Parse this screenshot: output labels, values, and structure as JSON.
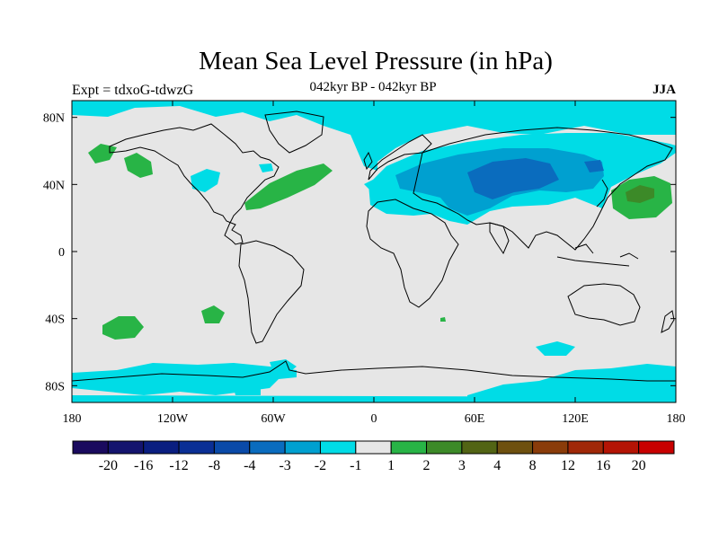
{
  "header": {
    "title": "Mean Sea Level Pressure (in hPa)",
    "subtitle": "042kyr BP - 042kyr BP",
    "experiment": "Expt = tdxoG-tdwzG",
    "season": "JJA"
  },
  "map": {
    "projection": "cylindrical-equidistant",
    "lon_range": [
      -180,
      180
    ],
    "lat_range": [
      -90,
      90
    ],
    "background_color": "#e6e6e6",
    "coastline_color": "#000000",
    "x_ticks": [
      "180",
      "120W",
      "60W",
      "0",
      "60E",
      "120E",
      "180"
    ],
    "y_ticks": [
      "80N",
      "40N",
      "0",
      "40S",
      "80S"
    ]
  },
  "colorbar": {
    "colors": [
      "#1a0a5e",
      "#14146e",
      "#0a1e80",
      "#0a2f95",
      "#0a4aa8",
      "#0a6cbe",
      "#00a0d0",
      "#00dce6",
      "#e6e6e6",
      "#28b446",
      "#3c8a28",
      "#526414",
      "#6e500f",
      "#8a3c0a",
      "#a02808",
      "#b41405",
      "#c80000"
    ],
    "labels": [
      "-20",
      "-16",
      "-12",
      "-8",
      "-4",
      "-3",
      "-2",
      "-1",
      "1",
      "2",
      "3",
      "4",
      "8",
      "12",
      "16",
      "20"
    ]
  },
  "anomaly_regions": [
    {
      "name": "eurasia-low-cyan",
      "level": "-1",
      "color": "#00dce6"
    },
    {
      "name": "eurasia-low-blue",
      "level": "-2",
      "color": "#00a0d0"
    },
    {
      "name": "eurasia-low-core",
      "level": "-3",
      "color": "#0a6cbe"
    },
    {
      "name": "north-pacific-high",
      "level": "2",
      "color": "#28b446"
    },
    {
      "name": "north-pacific-high-core",
      "level": "3",
      "color": "#3c8a28"
    },
    {
      "name": "north-atlantic-high",
      "level": "2",
      "color": "#28b446"
    },
    {
      "name": "south-pacific-high",
      "level": "2",
      "color": "#28b446"
    },
    {
      "name": "antarctic-low",
      "level": "-1",
      "color": "#00dce6"
    }
  ]
}
